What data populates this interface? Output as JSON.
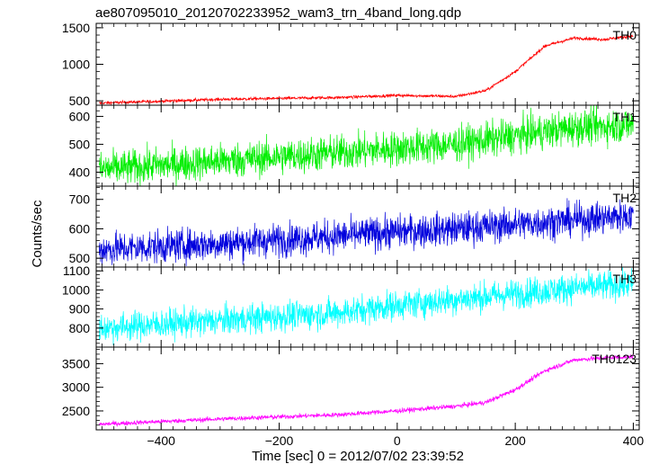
{
  "title": "ae807095010_20120702233952_wam3_trn_4band_long.qdp",
  "xlabel": "Time [sec] 0 = 2012/07/02 23:39:52",
  "ylabel": "Counts/sec",
  "chart_data": {
    "type": "line",
    "x_range": [
      -510,
      410
    ],
    "x_ticks": [
      -400,
      -200,
      0,
      200,
      400
    ],
    "x_tick_labels": [
      "−400",
      "−200",
      "0",
      "200",
      "400"
    ],
    "panels": [
      {
        "name": "TH0",
        "color": "#ff0000",
        "noise": 15,
        "ylim": [
          440,
          1560
        ],
        "yticks": [
          500,
          1000,
          1500
        ],
        "trend": [
          [
            -500,
            470
          ],
          [
            -300,
            520
          ],
          [
            -100,
            545
          ],
          [
            0,
            575
          ],
          [
            100,
            560
          ],
          [
            150,
            640
          ],
          [
            200,
            900
          ],
          [
            250,
            1250
          ],
          [
            300,
            1360
          ],
          [
            350,
            1340
          ],
          [
            400,
            1390
          ]
        ]
      },
      {
        "name": "TH1",
        "color": "#00ee00",
        "noise": 45,
        "ylim": [
          350,
          640
        ],
        "yticks": [
          400,
          500,
          600
        ],
        "trend": [
          [
            -500,
            410
          ],
          [
            -300,
            440
          ],
          [
            -100,
            470
          ],
          [
            0,
            485
          ],
          [
            100,
            500
          ],
          [
            200,
            530
          ],
          [
            300,
            560
          ],
          [
            400,
            570
          ]
        ]
      },
      {
        "name": "TH2",
        "color": "#0000dd",
        "noise": 40,
        "ylim": [
          470,
          745
        ],
        "yticks": [
          500,
          600,
          700
        ],
        "trend": [
          [
            -500,
            530
          ],
          [
            -300,
            550
          ],
          [
            -100,
            575
          ],
          [
            0,
            590
          ],
          [
            100,
            600
          ],
          [
            200,
            615
          ],
          [
            300,
            630
          ],
          [
            400,
            645
          ]
        ]
      },
      {
        "name": "TH3",
        "color": "#00ffff",
        "noise": 55,
        "ylim": [
          700,
          1120
        ],
        "yticks": [
          800,
          900,
          1000,
          1100
        ],
        "trend": [
          [
            -500,
            800
          ],
          [
            -300,
            840
          ],
          [
            -100,
            880
          ],
          [
            0,
            920
          ],
          [
            100,
            950
          ],
          [
            200,
            980
          ],
          [
            300,
            1010
          ],
          [
            400,
            1030
          ]
        ]
      },
      {
        "name": "TH0123",
        "color": "#ff00ff",
        "noise": 35,
        "ylim": [
          2100,
          3850
        ],
        "yticks": [
          2500,
          3000,
          3500
        ],
        "trend": [
          [
            -500,
            2220
          ],
          [
            -300,
            2330
          ],
          [
            -100,
            2420
          ],
          [
            0,
            2500
          ],
          [
            100,
            2600
          ],
          [
            150,
            2680
          ],
          [
            200,
            2950
          ],
          [
            250,
            3350
          ],
          [
            300,
            3580
          ],
          [
            350,
            3620
          ],
          [
            400,
            3650
          ]
        ]
      }
    ]
  }
}
